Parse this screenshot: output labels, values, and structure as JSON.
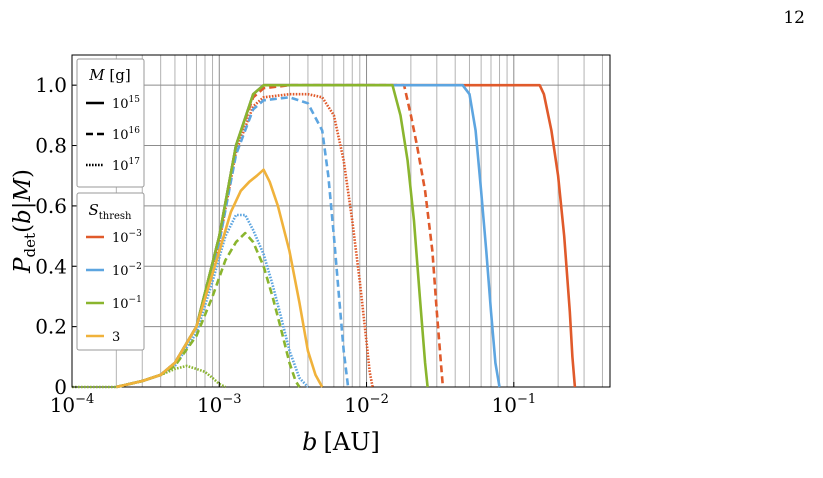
{
  "page_number": "12",
  "chart_data": {
    "type": "line",
    "xscale": "log",
    "xlabel": "b [AU]",
    "ylabel": "P_det(b|M)",
    "xlim": [
      0.0001,
      0.45
    ],
    "ylim": [
      0,
      1.1
    ],
    "grid": true,
    "xticks": [
      {
        "value": 0.0001,
        "base": "10",
        "exp": "−4"
      },
      {
        "value": 0.001,
        "base": "10",
        "exp": "−3"
      },
      {
        "value": 0.01,
        "base": "10",
        "exp": "−2"
      },
      {
        "value": 0.1,
        "base": "10",
        "exp": "−1"
      }
    ],
    "yticks": [
      "0",
      "0.2",
      "0.4",
      "0.6",
      "0.8",
      "1.0"
    ],
    "legend_mass": {
      "title": "M [g]",
      "placement": "top-left",
      "entries": [
        {
          "style": "solid",
          "base": "10",
          "exp": "15"
        },
        {
          "style": "dashed",
          "base": "10",
          "exp": "16"
        },
        {
          "style": "dotted",
          "base": "10",
          "exp": "17"
        }
      ]
    },
    "legend_threshold": {
      "title": "S_thresh",
      "placement": "left",
      "entries": [
        {
          "color": "#e05a2b",
          "base": "10",
          "exp": "−3"
        },
        {
          "color": "#5da5e0",
          "base": "10",
          "exp": "−2"
        },
        {
          "color": "#8ab52e",
          "base": "10",
          "exp": "−1"
        },
        {
          "color": "#f0b23b",
          "base": "3",
          "exp": ""
        }
      ]
    },
    "series": [
      {
        "color": "#e05a2b",
        "style": "solid",
        "x": [
          0.0002,
          0.0003,
          0.0004,
          0.0005,
          0.0007,
          0.001,
          0.0013,
          0.0017,
          0.002,
          0.003,
          0.01,
          0.05,
          0.13,
          0.15,
          0.16,
          0.18,
          0.2,
          0.22,
          0.24,
          0.25,
          0.26
        ],
        "y": [
          0.0,
          0.02,
          0.04,
          0.08,
          0.2,
          0.5,
          0.8,
          0.97,
          1.0,
          1.0,
          1.0,
          1.0,
          1.0,
          1.0,
          0.97,
          0.85,
          0.7,
          0.5,
          0.25,
          0.1,
          0.0
        ]
      },
      {
        "color": "#e05a2b",
        "style": "dashed",
        "x": [
          0.0002,
          0.0003,
          0.0004,
          0.0005,
          0.0007,
          0.001,
          0.0013,
          0.0017,
          0.002,
          0.003,
          0.01,
          0.018,
          0.02,
          0.022,
          0.025,
          0.028,
          0.03,
          0.032,
          0.033
        ],
        "y": [
          0.0,
          0.02,
          0.04,
          0.08,
          0.2,
          0.5,
          0.8,
          0.96,
          0.99,
          1.0,
          1.0,
          1.0,
          0.9,
          0.8,
          0.65,
          0.45,
          0.25,
          0.08,
          0.0
        ]
      },
      {
        "color": "#e05a2b",
        "style": "dotted",
        "x": [
          0.0002,
          0.0003,
          0.0004,
          0.0005,
          0.0007,
          0.001,
          0.0013,
          0.0017,
          0.002,
          0.003,
          0.004,
          0.005,
          0.006,
          0.007,
          0.008,
          0.009,
          0.01,
          0.0105,
          0.011
        ],
        "y": [
          0.0,
          0.02,
          0.04,
          0.08,
          0.2,
          0.48,
          0.78,
          0.93,
          0.96,
          0.97,
          0.97,
          0.96,
          0.9,
          0.75,
          0.55,
          0.35,
          0.15,
          0.05,
          0.0
        ]
      },
      {
        "color": "#5da5e0",
        "style": "solid",
        "x": [
          0.0002,
          0.0003,
          0.0004,
          0.0005,
          0.0007,
          0.001,
          0.0013,
          0.0017,
          0.002,
          0.003,
          0.01,
          0.03,
          0.045,
          0.05,
          0.055,
          0.06,
          0.065,
          0.07,
          0.075,
          0.08
        ],
        "y": [
          0.0,
          0.02,
          0.04,
          0.08,
          0.2,
          0.5,
          0.8,
          0.97,
          1.0,
          1.0,
          1.0,
          1.0,
          1.0,
          0.97,
          0.85,
          0.65,
          0.45,
          0.25,
          0.08,
          0.0
        ]
      },
      {
        "color": "#5da5e0",
        "style": "dashed",
        "x": [
          0.0002,
          0.0003,
          0.0004,
          0.0005,
          0.0007,
          0.001,
          0.0013,
          0.0017,
          0.002,
          0.003,
          0.004,
          0.005,
          0.0055,
          0.006,
          0.0065,
          0.007,
          0.0075
        ],
        "y": [
          0.0,
          0.02,
          0.04,
          0.08,
          0.2,
          0.48,
          0.77,
          0.92,
          0.95,
          0.96,
          0.94,
          0.85,
          0.7,
          0.5,
          0.3,
          0.12,
          0.0
        ]
      },
      {
        "color": "#5da5e0",
        "style": "dotted",
        "x": [
          0.0002,
          0.0003,
          0.0004,
          0.0005,
          0.0007,
          0.0009,
          0.0011,
          0.0013,
          0.0015,
          0.0017,
          0.002,
          0.0023,
          0.0026,
          0.003,
          0.0035,
          0.004
        ],
        "y": [
          0.0,
          0.02,
          0.04,
          0.07,
          0.18,
          0.35,
          0.5,
          0.57,
          0.57,
          0.52,
          0.44,
          0.34,
          0.24,
          0.12,
          0.03,
          0.0
        ]
      },
      {
        "color": "#8ab52e",
        "style": "solid",
        "x": [
          0.0002,
          0.0003,
          0.0004,
          0.0005,
          0.0007,
          0.001,
          0.0013,
          0.0017,
          0.002,
          0.003,
          0.01,
          0.015,
          0.017,
          0.019,
          0.021,
          0.023,
          0.025,
          0.026
        ],
        "y": [
          0.0,
          0.02,
          0.04,
          0.08,
          0.2,
          0.5,
          0.8,
          0.97,
          1.0,
          1.0,
          1.0,
          1.0,
          0.9,
          0.75,
          0.55,
          0.3,
          0.08,
          0.0
        ]
      },
      {
        "color": "#8ab52e",
        "style": "dashed",
        "x": [
          0.0002,
          0.0003,
          0.0004,
          0.0005,
          0.0007,
          0.0009,
          0.0011,
          0.0013,
          0.0015,
          0.0017,
          0.002,
          0.0023,
          0.0026,
          0.003,
          0.0033,
          0.0035
        ],
        "y": [
          0.0,
          0.02,
          0.04,
          0.07,
          0.17,
          0.3,
          0.42,
          0.48,
          0.51,
          0.48,
          0.4,
          0.3,
          0.2,
          0.08,
          0.02,
          0.0
        ]
      },
      {
        "color": "#8ab52e",
        "style": "dotted",
        "x": [
          0.0001,
          0.0002,
          0.0003,
          0.0004,
          0.0005,
          0.0006,
          0.0007,
          0.0008,
          0.0009,
          0.001,
          0.0011
        ],
        "y": [
          0.0,
          0.0,
          0.02,
          0.04,
          0.06,
          0.07,
          0.06,
          0.05,
          0.03,
          0.01,
          0.0
        ]
      },
      {
        "color": "#f0b23b",
        "style": "solid",
        "x": [
          0.0002,
          0.0003,
          0.0004,
          0.0005,
          0.0007,
          0.001,
          0.0012,
          0.0014,
          0.0016,
          0.0018,
          0.002,
          0.0022,
          0.0025,
          0.003,
          0.0035,
          0.004,
          0.0045,
          0.005
        ],
        "y": [
          0.0,
          0.02,
          0.04,
          0.08,
          0.2,
          0.45,
          0.58,
          0.65,
          0.68,
          0.7,
          0.72,
          0.68,
          0.6,
          0.45,
          0.28,
          0.12,
          0.04,
          0.0
        ]
      }
    ]
  }
}
